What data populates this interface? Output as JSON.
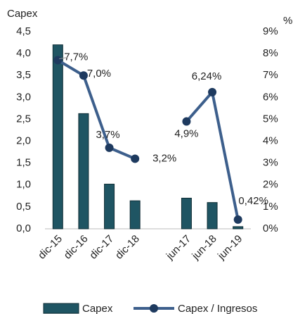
{
  "chart_data": {
    "type": "bar_line",
    "y_label": "Capex",
    "y2_label": "%",
    "categories": [
      "dic-15",
      "dic-16",
      "dic-17",
      "dic-18",
      null,
      "jun-17",
      "jun-18",
      "jun-19"
    ],
    "series": [
      {
        "name": "Capex",
        "type": "bar",
        "color": "#1f5563",
        "values": [
          4.2,
          2.63,
          1.02,
          0.64,
          null,
          0.7,
          0.6,
          0.05
        ]
      },
      {
        "name": "Capex / Ingresos",
        "type": "line",
        "axis": "y2",
        "color": "#3d5f8c",
        "marker_color": "#1e3a5f",
        "values": [
          7.7,
          7.0,
          3.7,
          3.2,
          null,
          4.9,
          6.24,
          0.42
        ],
        "value_labels": [
          "7,7%",
          "7,0%",
          "3,7%",
          "3,2%",
          null,
          "4,9%",
          "6,24%",
          "0,42%"
        ]
      }
    ],
    "ylim": [
      0,
      4.5
    ],
    "yticks": [
      {
        "value": 0,
        "label": "0,0"
      },
      {
        "value": 0.5,
        "label": "0,5"
      },
      {
        "value": 1,
        "label": "1,0"
      },
      {
        "value": 1.5,
        "label": "1,5"
      },
      {
        "value": 2,
        "label": "2,0"
      },
      {
        "value": 2.5,
        "label": "2,5"
      },
      {
        "value": 3,
        "label": "3,0"
      },
      {
        "value": 3.5,
        "label": "3,5"
      },
      {
        "value": 4,
        "label": "4,0"
      },
      {
        "value": 4.5,
        "label": "4,5"
      }
    ],
    "y2lim": [
      0,
      9
    ],
    "y2ticks": [
      {
        "value": 0,
        "label": "0%"
      },
      {
        "value": 1,
        "label": "1%"
      },
      {
        "value": 2,
        "label": "2%"
      },
      {
        "value": 3,
        "label": "3%"
      },
      {
        "value": 4,
        "label": "4%"
      },
      {
        "value": 5,
        "label": "5%"
      },
      {
        "value": 6,
        "label": "6%"
      },
      {
        "value": 7,
        "label": "7%"
      },
      {
        "value": 8,
        "label": "8%"
      },
      {
        "value": 9,
        "label": "9%"
      }
    ],
    "grid": false
  }
}
